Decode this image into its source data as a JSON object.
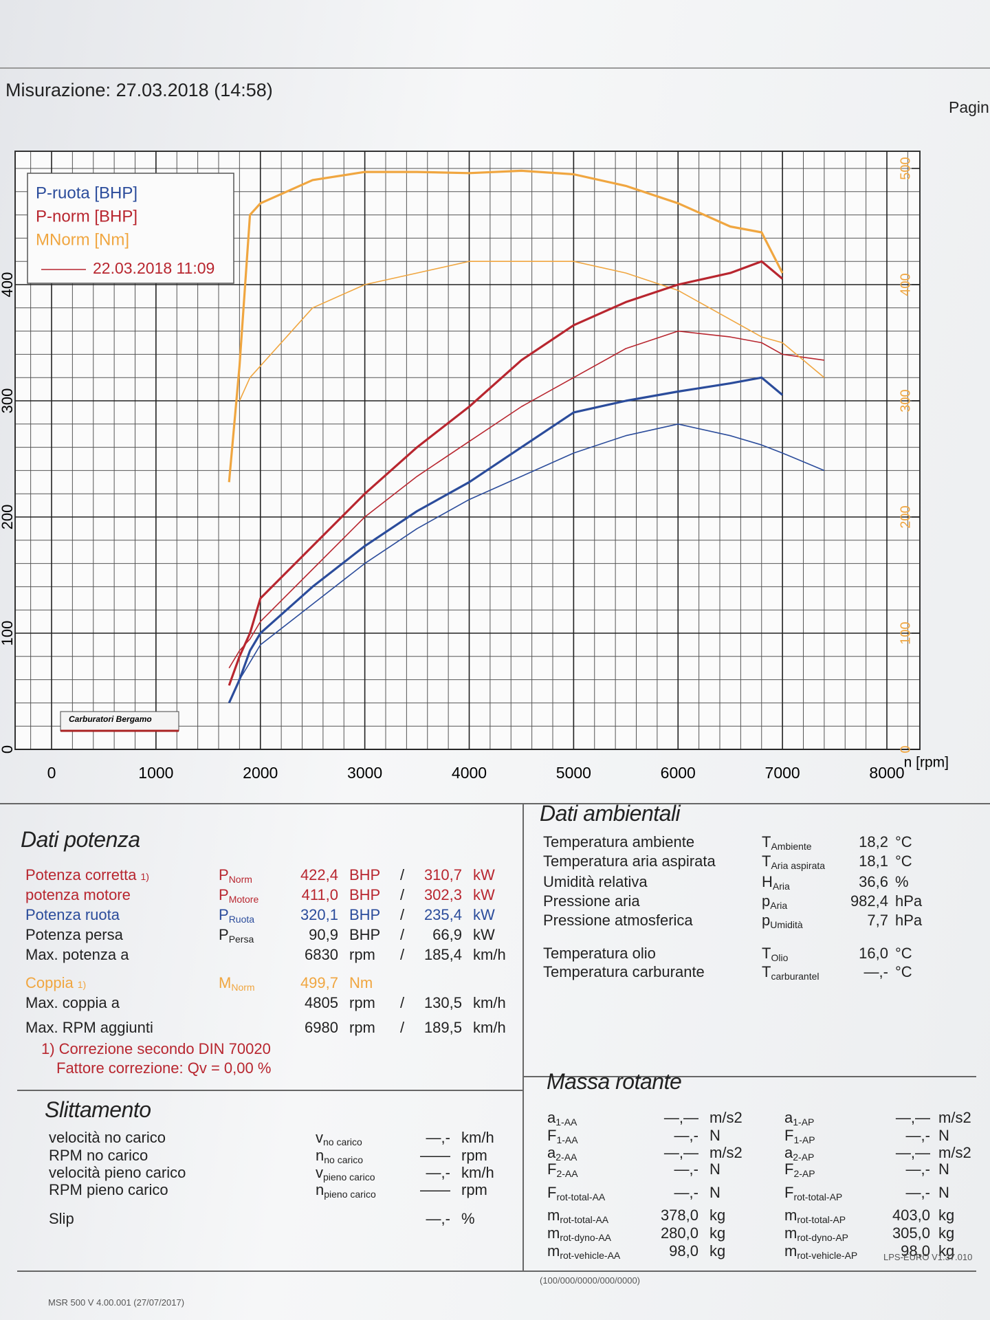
{
  "header": {
    "title": "Misurazione: 27.03.2018 (14:58)",
    "page": "Pagin"
  },
  "chart_data": {
    "type": "line",
    "x": [
      1700,
      1800,
      1900,
      2000,
      2500,
      3000,
      3500,
      4000,
      4500,
      5000,
      5500,
      6000,
      6500,
      6800,
      7000,
      7400
    ],
    "xlim": [
      0,
      8000
    ],
    "xticks": [
      0,
      1000,
      2000,
      3000,
      4000,
      5000,
      6000,
      7000,
      8000
    ],
    "x_label": "n [rpm]",
    "ylim": [
      0,
      500
    ],
    "yticks": [
      0,
      100,
      200,
      300,
      400
    ],
    "y2lim": [
      0,
      500
    ],
    "y2ticks": [
      0,
      100,
      200,
      300,
      400,
      500
    ],
    "grid": true,
    "series": [
      {
        "name": "P-ruota [BHP]",
        "color": "#2b4c9b",
        "values": [
          40,
          60,
          85,
          100,
          140,
          175,
          205,
          230,
          260,
          290,
          300,
          308,
          315,
          320,
          305,
          null
        ]
      },
      {
        "name": "P-norm [BHP]",
        "color": "#b8262f",
        "values": [
          55,
          80,
          100,
          130,
          175,
          220,
          260,
          295,
          335,
          365,
          385,
          400,
          410,
          420,
          405,
          null
        ]
      },
      {
        "name": "MNorm [Nm]",
        "color": "#f0a640",
        "axis": "y2",
        "values": [
          230,
          330,
          460,
          470,
          490,
          497,
          497,
          496,
          498,
          495,
          485,
          470,
          450,
          445,
          410,
          null
        ]
      }
    ],
    "comparison": {
      "name": "22.03.2018 11:09",
      "color": "#b8262f",
      "series": [
        {
          "color": "#2b4c9b",
          "values": [
            null,
            60,
            75,
            90,
            125,
            160,
            190,
            215,
            235,
            255,
            270,
            280,
            270,
            262,
            255,
            240
          ]
        },
        {
          "color": "#b8262f",
          "values": [
            70,
            85,
            95,
            110,
            155,
            200,
            235,
            265,
            295,
            320,
            345,
            360,
            355,
            350,
            340,
            335
          ]
        },
        {
          "color": "#f0a640",
          "axis": "y2",
          "values": [
            null,
            300,
            320,
            330,
            380,
            400,
            410,
            420,
            420,
            420,
            410,
            395,
            370,
            355,
            350,
            320
          ]
        }
      ]
    },
    "logo": "Carburatori Bergamo"
  },
  "dati_potenza": {
    "title": "Dati potenza",
    "rows": [
      {
        "label": "Potenza corretta",
        "note": "1)",
        "sym": "P",
        "sub": "Norm",
        "v1": "422,4",
        "u1": "BHP",
        "sep": "/",
        "v2": "310,7",
        "u2": "kW",
        "color": "#b8262f"
      },
      {
        "label": "potenza motore",
        "sym": "P",
        "sub": "Motore",
        "v1": "411,0",
        "u1": "BHP",
        "sep": "/",
        "v2": "302,3",
        "u2": "kW",
        "color": "#b8262f"
      },
      {
        "label": "Potenza ruota",
        "sym": "P",
        "sub": "Ruota",
        "v1": "320,1",
        "u1": "BHP",
        "sep": "/",
        "v2": "235,4",
        "u2": "kW",
        "color": "#2b4c9b"
      },
      {
        "label": "Potenza persa",
        "sym": "P",
        "sub": "Persa",
        "v1": "90,9",
        "u1": "BHP",
        "sep": "/",
        "v2": "66,9",
        "u2": "kW"
      },
      {
        "label": "Max. potenza a",
        "v1": "6830",
        "u1": "rpm",
        "sep": "/",
        "v2": "185,4",
        "u2": "km/h"
      },
      {
        "label": "Coppia",
        "note": "1)",
        "sym": "M",
        "sub": "Norm",
        "v1": "499,7",
        "u1": "Nm",
        "color": "#f0a640"
      },
      {
        "label": "Max. coppia a",
        "v1": "4805",
        "u1": "rpm",
        "sep": "/",
        "v2": "130,5",
        "u2": "km/h"
      },
      {
        "label": "Max. RPM aggiunti",
        "v1": "6980",
        "u1": "rpm",
        "sep": "/",
        "v2": "189,5",
        "u2": "km/h"
      }
    ],
    "footnote": [
      "1) Correzione secondo DIN 70020",
      "Fattore correzione: Qv =  0,00 %"
    ]
  },
  "dati_ambientali": {
    "title": "Dati ambientali",
    "rows": [
      {
        "label": "Temperatura ambiente",
        "sym": "T",
        "sub": "Ambiente",
        "v1": "18,2",
        "u1": "°C"
      },
      {
        "label": "Temperatura aria aspirata",
        "sym": "T",
        "sub": "Aria aspirata",
        "v1": "18,1",
        "u1": "°C"
      },
      {
        "label": "Umidità relativa",
        "sym": "H",
        "sub": "Aria",
        "v1": "36,6",
        "u1": "%"
      },
      {
        "label": "Pressione aria",
        "sym": "p",
        "sub": "Aria",
        "v1": "982,4",
        "u1": "hPa"
      },
      {
        "label": "Pressione atmosferica",
        "sym": "p",
        "sub": "Umidità",
        "v1": "7,7",
        "u1": "hPa"
      },
      {
        "label": "Temperatura olio",
        "sym": "T",
        "sub": "Olio",
        "v1": "16,0",
        "u1": "°C"
      },
      {
        "label": "Temperatura carburante",
        "sym": "T",
        "sub": "carburantel",
        "v1": "—,-",
        "u1": "°C"
      }
    ]
  },
  "slittamento": {
    "title": "Slittamento",
    "rows": [
      {
        "label": "velocità no carico",
        "sym": "v",
        "sub": "no carico",
        "v1": "—,-",
        "u1": "km/h"
      },
      {
        "label": "RPM no carico",
        "sym": "n",
        "sub": "no carico",
        "v1": "——",
        "u1": "rpm"
      },
      {
        "label": "velocità pieno carico",
        "sym": "v",
        "sub": "pieno carico",
        "v1": "—,-",
        "u1": "km/h"
      },
      {
        "label": "RPM pieno carico",
        "sym": "n",
        "sub": "pieno carico",
        "v1": "——",
        "u1": "rpm"
      },
      {
        "label": "Slip",
        "v1": "—,-",
        "u1": "%"
      }
    ]
  },
  "massa_rotante": {
    "title": "Massa rotante",
    "left": [
      {
        "sym": "a",
        "sub": "1-AA",
        "v1": "—,—",
        "u1": "m/s2"
      },
      {
        "sym": "F",
        "sub": "1-AA",
        "v1": "—,-",
        "u1": "N"
      },
      {
        "sym": "a",
        "sub": "2-AA",
        "v1": "—,—",
        "u1": "m/s2"
      },
      {
        "sym": "F",
        "sub": "2-AA",
        "v1": "—,-",
        "u1": "N"
      },
      {
        "sym": "F",
        "sub": "rot-total-AA",
        "v1": "—,-",
        "u1": "N"
      },
      {
        "sym": "m",
        "sub": "rot-total-AA",
        "v1": "378,0",
        "u1": "kg"
      },
      {
        "sym": "m",
        "sub": "rot-dyno-AA",
        "v1": "280,0",
        "u1": "kg"
      },
      {
        "sym": "m",
        "sub": "rot-vehicle-AA",
        "v1": "98,0",
        "u1": "kg"
      }
    ],
    "right": [
      {
        "sym": "a",
        "sub": "1-AP",
        "v1": "—,—",
        "u1": "m/s2"
      },
      {
        "sym": "F",
        "sub": "1-AP",
        "v1": "—,-",
        "u1": "N"
      },
      {
        "sym": "a",
        "sub": "2-AP",
        "v1": "—,—",
        "u1": "m/s2"
      },
      {
        "sym": "F",
        "sub": "2-AP",
        "v1": "—,-",
        "u1": "N"
      },
      {
        "sym": "F",
        "sub": "rot-total-AP",
        "v1": "—,-",
        "u1": "N"
      },
      {
        "sym": "m",
        "sub": "rot-total-AP",
        "v1": "403,0",
        "u1": "kg"
      },
      {
        "sym": "m",
        "sub": "rot-dyno-AP",
        "v1": "305,0",
        "u1": "kg"
      },
      {
        "sym": "m",
        "sub": "rot-vehicle-AP",
        "v1": "98,0",
        "u1": "kg"
      }
    ]
  },
  "footer": {
    "code": "(100/000/0000/000/0000)",
    "version": "LPS-EURO V1.37.010",
    "software": "MSR 500 V 4.00.001 (27/07/2017)"
  }
}
